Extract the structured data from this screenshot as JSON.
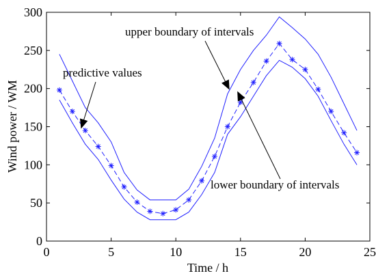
{
  "chart_data": {
    "type": "line",
    "xlabel": "Time / h",
    "ylabel": "Wind power / WM",
    "xlim": [
      0,
      25
    ],
    "ylim": [
      0,
      300
    ],
    "xticks": [
      0,
      5,
      10,
      15,
      20,
      25
    ],
    "yticks": [
      0,
      50,
      100,
      150,
      200,
      250,
      300
    ],
    "grid": false,
    "x": [
      1,
      2,
      3,
      4,
      5,
      6,
      7,
      8,
      9,
      10,
      11,
      12,
      13,
      14,
      15,
      16,
      17,
      18,
      19,
      20,
      21,
      22,
      23,
      24
    ],
    "series": [
      {
        "name": "upper boundary of intervals",
        "style": "solid",
        "values": [
          245,
          210,
          175,
          155,
          130,
          90,
          67,
          54,
          54,
          54,
          68,
          98,
          135,
          193,
          225,
          250,
          270,
          294,
          280,
          265,
          245,
          215,
          180,
          145
        ]
      },
      {
        "name": "predictive values",
        "style": "dashed-star",
        "values": [
          198,
          170,
          145,
          124,
          99,
          71,
          51,
          39,
          36,
          41,
          54,
          79,
          111,
          150,
          182,
          208,
          236,
          259,
          238,
          225,
          199,
          170,
          142,
          116
        ]
      },
      {
        "name": "lower boundary of intervals",
        "style": "solid",
        "values": [
          185,
          155,
          127,
          107,
          80,
          55,
          38,
          28,
          28,
          28,
          38,
          61,
          90,
          140,
          163,
          190,
          217,
          237,
          228,
          213,
          190,
          158,
          127,
          100
        ]
      }
    ],
    "annotations": [
      {
        "text": "upper boundary of intervals",
        "target_x": 14.1,
        "target_y": 200
      },
      {
        "text": "predictive values",
        "target_x": 2.7,
        "target_y": 149
      },
      {
        "text": "lower boundary of intervals",
        "target_x": 14.8,
        "target_y": 195
      }
    ]
  }
}
